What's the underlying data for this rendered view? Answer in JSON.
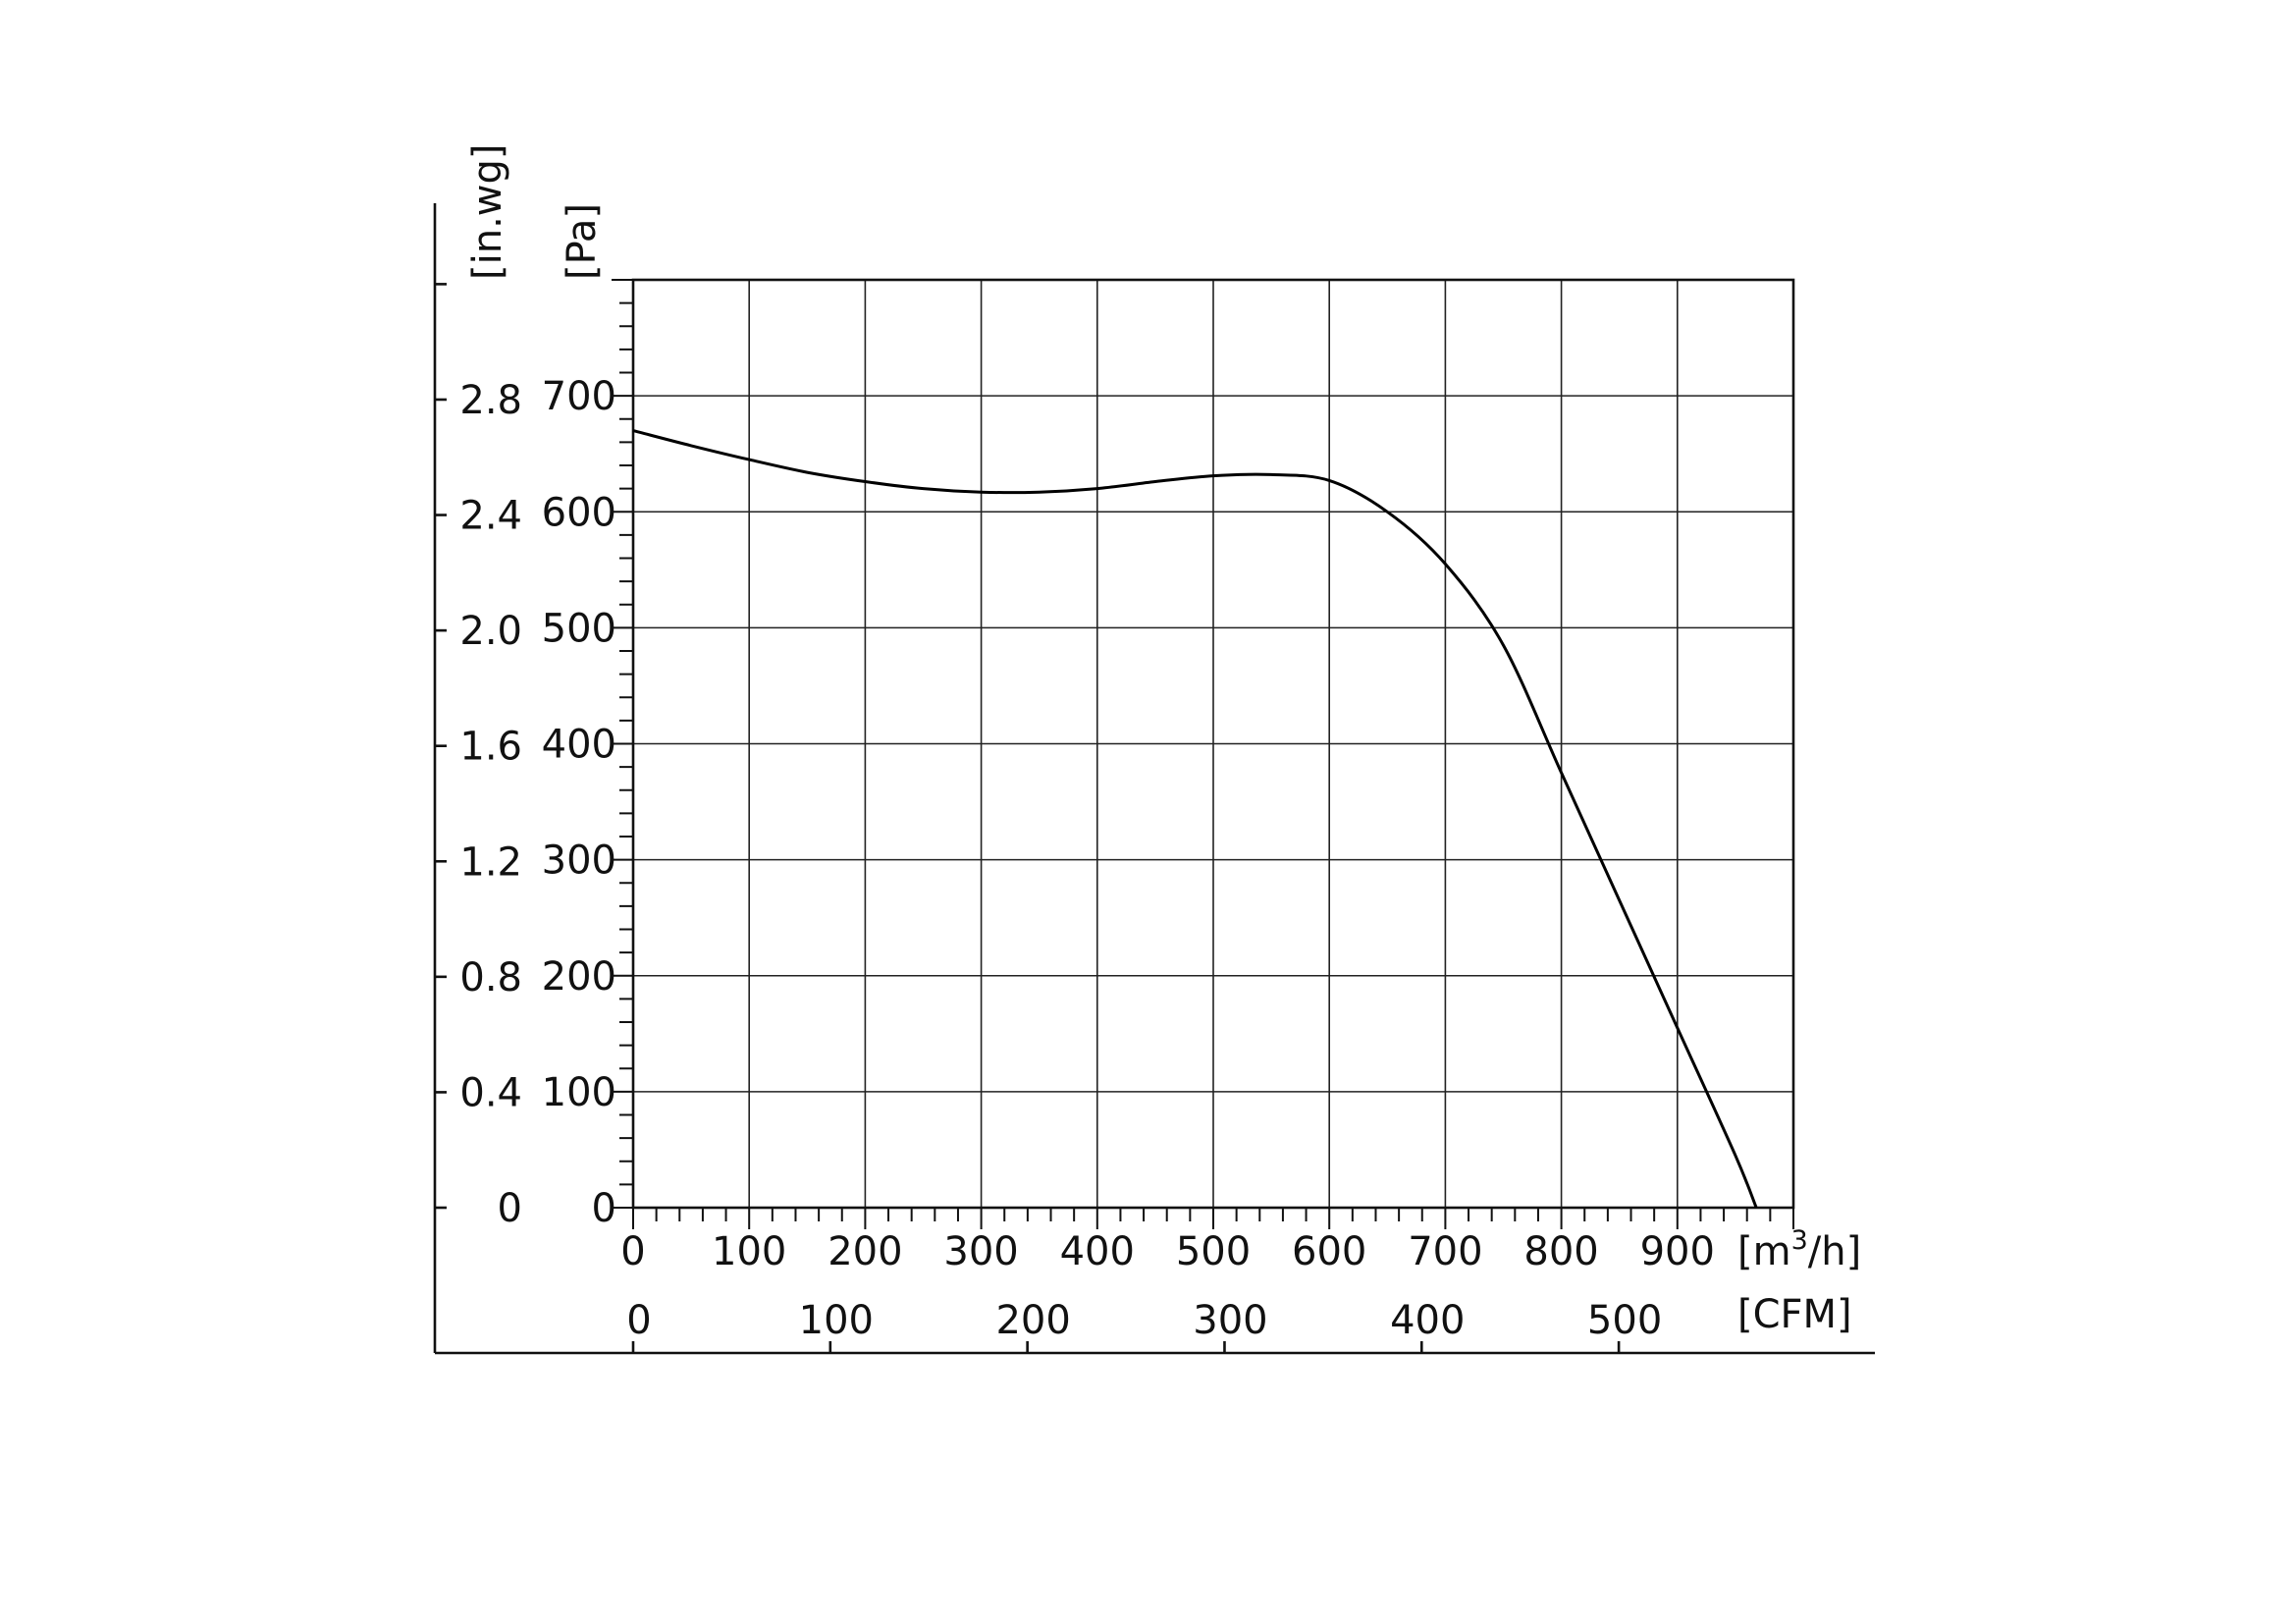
{
  "chart_data": {
    "type": "line",
    "title": "",
    "x_primary": {
      "label_base": "[m",
      "label_sup": "3",
      "label_tail": "/h]",
      "ticks": [
        "0",
        "100",
        "200",
        "300",
        "400",
        "500",
        "600",
        "700",
        "800",
        "900"
      ],
      "range": [
        0,
        1000
      ]
    },
    "x_secondary": {
      "label": "[CFM]",
      "ticks": [
        "0",
        "100",
        "200",
        "300",
        "400",
        "500"
      ],
      "tick_values": [
        0,
        100,
        200,
        300,
        400,
        500
      ]
    },
    "y_primary": {
      "label": "[Pa]",
      "ticks": [
        "0",
        "100",
        "200",
        "300",
        "400",
        "500",
        "600",
        "700"
      ],
      "range": [
        0,
        800
      ]
    },
    "y_secondary": {
      "label": "[in.wg]",
      "ticks": [
        "0",
        "0.4",
        "0.8",
        "1.2",
        "1.6",
        "2.0",
        "2.4",
        "2.8"
      ],
      "tick_values": [
        0,
        0.4,
        0.8,
        1.2,
        1.6,
        2.0,
        2.4,
        2.8
      ]
    },
    "grid": true,
    "series": [
      {
        "x": [
          0,
          50,
          100,
          150,
          200,
          250,
          300,
          350,
          400,
          450,
          500,
          550,
          600,
          650,
          700,
          750,
          800,
          850,
          900,
          950,
          968
        ],
        "y": [
          670,
          657,
          645,
          634,
          626,
          620,
          617,
          617,
          620,
          626,
          631,
          632,
          627,
          600,
          555,
          485,
          375,
          265,
          155,
          45,
          0
        ]
      }
    ]
  }
}
